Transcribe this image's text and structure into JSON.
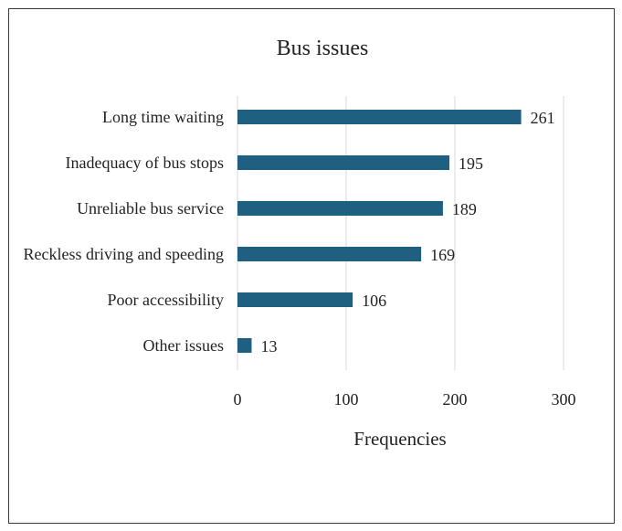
{
  "chart_data": {
    "type": "bar",
    "orientation": "horizontal",
    "title": "Bus issues",
    "xlabel": "Frequencies",
    "ylabel": "",
    "categories": [
      "Long time waiting",
      "Inadequacy of bus stops",
      "Unreliable bus service",
      "Reckless driving and speeding",
      "Poor accessibility",
      "Other issues"
    ],
    "values": [
      261,
      195,
      189,
      169,
      106,
      13
    ],
    "xlim": [
      0,
      300
    ],
    "xticks": [
      "0",
      "100",
      "200",
      "300"
    ],
    "grid": "vertical",
    "legend": "none",
    "bar_color": "#1f5f7f"
  }
}
